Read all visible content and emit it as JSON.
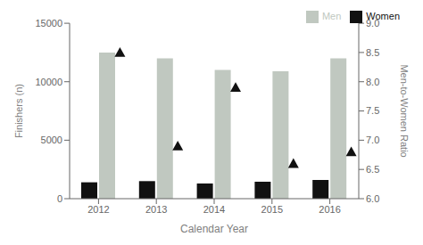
{
  "chart_data": {
    "type": "bar",
    "categories": [
      "2012",
      "2013",
      "2014",
      "2015",
      "2016"
    ],
    "xlabel": "Calendar Year",
    "ylabel": "Finishers (n)",
    "y2label": "Men-to-Women Ratio",
    "ylim": [
      0,
      15000
    ],
    "yticks": [
      0,
      5000,
      10000,
      15000
    ],
    "y2lim": [
      6.0,
      9.0
    ],
    "y2ticks": [
      {
        "value": 6.0,
        "label": "6.0"
      },
      {
        "value": 6.5,
        "label": "6.5"
      },
      {
        "value": 7.0,
        "label": "7.0"
      },
      {
        "value": 7.5,
        "label": "7.5"
      },
      {
        "value": 8.0,
        "label": "8.0"
      },
      {
        "value": 8.5,
        "label": "8.5"
      },
      {
        "value": 9.0,
        "label": "9.0"
      }
    ],
    "series": [
      {
        "name": "Women",
        "color": "#111111",
        "values": [
          1400,
          1500,
          1300,
          1450,
          1600
        ]
      },
      {
        "name": "Men",
        "color": "#c0c8c0",
        "values": [
          12500,
          12000,
          11000,
          10900,
          12000
        ]
      },
      {
        "type": "scatter",
        "axis": "y2",
        "marker": "triangle",
        "color": "#111111",
        "values": [
          8.5,
          6.9,
          7.9,
          6.6,
          6.8
        ]
      }
    ],
    "legend": "upper right",
    "grid": false
  }
}
